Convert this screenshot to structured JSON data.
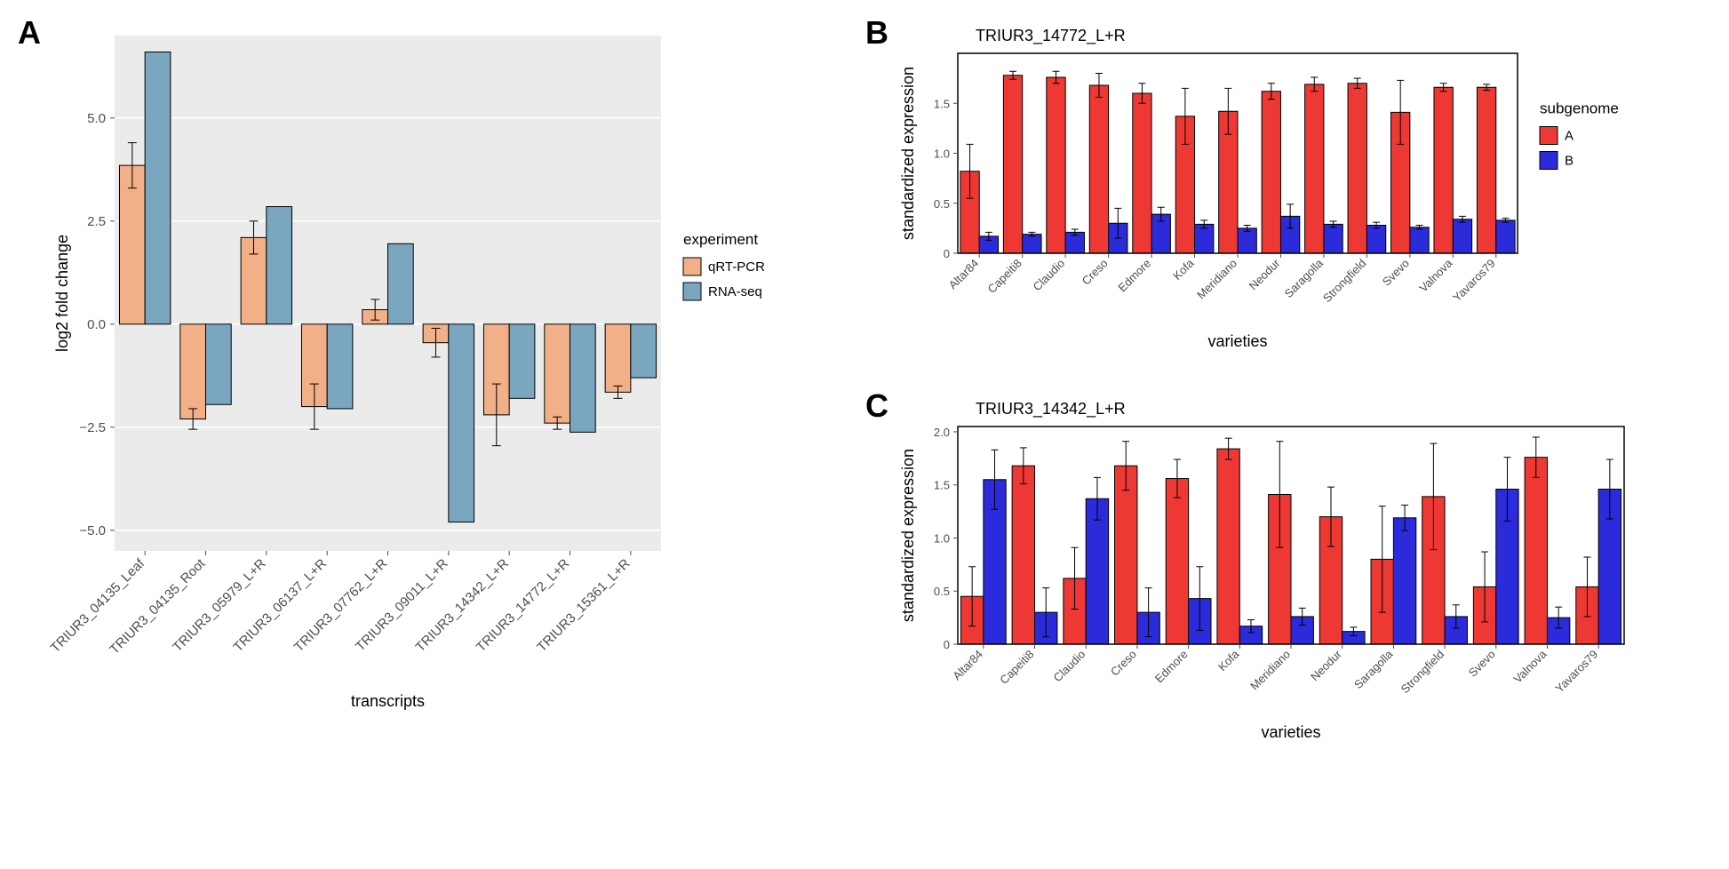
{
  "panelA": {
    "label": "A",
    "type": "bar",
    "xlabel": "transcripts",
    "ylabel": "log2 fold change",
    "ylim": [
      -5.5,
      7.0
    ],
    "yticks": [
      -5.0,
      -2.5,
      0.0,
      2.5,
      5.0
    ],
    "ytick_labels": [
      "−5.0",
      "−2.5",
      "0.0",
      "2.5",
      "5.0"
    ],
    "categories": [
      "TRIUR3_04135_Leaf",
      "TRIUR3_04135_Root",
      "TRIUR3_05979_L+R",
      "TRIUR3_06137_L+R",
      "TRIUR3_07762_L+R",
      "TRIUR3_09011_L+R",
      "TRIUR3_14342_L+R",
      "TRIUR3_14772_L+R",
      "TRIUR3_15361_L+R"
    ],
    "series": [
      {
        "name": "qRT-PCR",
        "color": "#f2b088",
        "values": [
          3.85,
          -2.3,
          2.1,
          -2.0,
          0.35,
          -0.45,
          -2.2,
          -2.4,
          -1.65
        ],
        "err": [
          0.55,
          0.25,
          0.4,
          0.55,
          0.25,
          0.35,
          0.75,
          0.15,
          0.15
        ]
      },
      {
        "name": "RNA-seq",
        "color": "#7aa7bf",
        "values": [
          6.6,
          -1.95,
          2.85,
          -2.05,
          1.95,
          -4.8,
          -1.8,
          -2.62,
          -1.3
        ],
        "err": [
          0,
          0,
          0,
          0,
          0,
          0,
          0,
          0,
          0
        ]
      }
    ],
    "legend_title": "experiment",
    "bg_color": "#ebebeb",
    "grid_color": "#ffffff",
    "bar_width": 0.42
  },
  "panelB": {
    "label": "B",
    "type": "bar",
    "title": "TRIUR3_14772_L+R",
    "xlabel": "varieties",
    "ylabel": "standardized expression",
    "ylim": [
      0,
      2.0
    ],
    "yticks": [
      0,
      0.5,
      1.0,
      1.5
    ],
    "ytick_labels": [
      "0",
      "0.5",
      "1.0",
      "1.5"
    ],
    "categories": [
      "Altar84",
      "Capeiti8",
      "Claudio",
      "Creso",
      "Edmore",
      "Kofa",
      "Meridiano",
      "Neodur",
      "Saragolla",
      "Strongfield",
      "Svevo",
      "Valnova",
      "Yavaros79"
    ],
    "series": [
      {
        "name": "A",
        "color": "#ed3833",
        "values": [
          0.82,
          1.78,
          1.76,
          1.68,
          1.6,
          1.37,
          1.42,
          1.62,
          1.69,
          1.7,
          1.41,
          1.66,
          1.66
        ],
        "err": [
          0.27,
          0.04,
          0.06,
          0.12,
          0.1,
          0.28,
          0.23,
          0.08,
          0.07,
          0.05,
          0.32,
          0.04,
          0.03
        ]
      },
      {
        "name": "B",
        "color": "#2b2bdb",
        "values": [
          0.17,
          0.19,
          0.21,
          0.3,
          0.39,
          0.29,
          0.25,
          0.37,
          0.29,
          0.28,
          0.26,
          0.34,
          0.33
        ],
        "err": [
          0.04,
          0.02,
          0.03,
          0.15,
          0.07,
          0.04,
          0.03,
          0.12,
          0.03,
          0.03,
          0.02,
          0.03,
          0.02
        ]
      }
    ],
    "legend_title": "subgenome",
    "bg_color": "#ffffff",
    "bar_width": 0.44
  },
  "panelC": {
    "label": "C",
    "type": "bar",
    "title": "TRIUR3_14342_L+R",
    "xlabel": "varieties",
    "ylabel": "standardized expression",
    "ylim": [
      0,
      2.05
    ],
    "yticks": [
      0,
      0.5,
      1.0,
      1.5,
      2.0
    ],
    "ytick_labels": [
      "0",
      "0.5",
      "1.0",
      "1.5",
      "2.0"
    ],
    "categories": [
      "Altar84",
      "Capeiti8",
      "Claudio",
      "Creso",
      "Edmore",
      "Kofa",
      "Meridiano",
      "Neodur",
      "Saragolla",
      "Strongfield",
      "Svevo",
      "Valnova",
      "Yavaros79"
    ],
    "series": [
      {
        "name": "A",
        "color": "#ed3833",
        "values": [
          0.45,
          1.68,
          0.62,
          1.68,
          1.56,
          1.84,
          1.41,
          1.2,
          0.8,
          1.39,
          0.54,
          1.76,
          0.54
        ],
        "err": [
          0.28,
          0.17,
          0.29,
          0.23,
          0.18,
          0.1,
          0.5,
          0.28,
          0.5,
          0.5,
          0.33,
          0.19,
          0.28
        ]
      },
      {
        "name": "B",
        "color": "#2b2bdb",
        "values": [
          1.55,
          0.3,
          1.37,
          0.3,
          0.43,
          0.17,
          0.26,
          0.12,
          1.19,
          0.26,
          1.46,
          0.25,
          1.46
        ],
        "err": [
          0.28,
          0.23,
          0.2,
          0.23,
          0.3,
          0.06,
          0.08,
          0.04,
          0.12,
          0.11,
          0.3,
          0.1,
          0.28
        ]
      }
    ],
    "bg_color": "#ffffff",
    "bar_width": 0.44
  },
  "colors": {
    "text": "#000000",
    "tick": "#4d4d4d"
  }
}
